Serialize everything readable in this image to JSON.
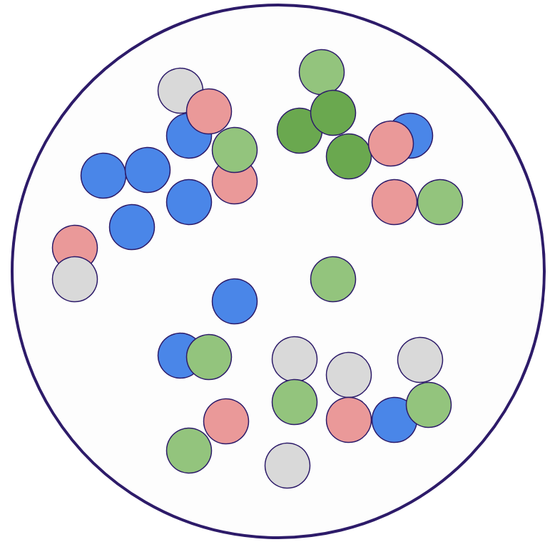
{
  "chart_data": {
    "type": "scatter",
    "marker": "circle",
    "grid": false,
    "tick_labels": false,
    "xlim": [
      0,
      771
    ],
    "ylim": [
      759,
      0
    ],
    "x": [
      253,
      265,
      293,
      145,
      207,
      329,
      329,
      265,
      185,
      105,
      105,
      451,
      420,
      489,
      467,
      575,
      548,
      553,
      617,
      467,
      329,
      253,
      293,
      413,
      413,
      489,
      589,
      489,
      553,
      601,
      317,
      265,
      403
    ],
    "y": [
      127,
      190,
      156,
      246,
      238,
      254,
      210,
      283,
      318,
      347,
      391,
      101,
      183,
      219,
      158,
      190,
      201,
      283,
      283,
      391,
      422,
      498,
      500,
      503,
      563,
      525,
      504,
      588,
      588,
      567,
      590,
      631,
      652
    ],
    "colors": [
      "#d9d9d9",
      "#4a86e8",
      "#ea9999",
      "#4a86e8",
      "#4a86e8",
      "#ea9999",
      "#93c47d",
      "#4a86e8",
      "#4a86e8",
      "#ea9999",
      "#d9d9d9",
      "#93c47d",
      "#6aa84f",
      "#6aa84f",
      "#6aa84f",
      "#4a86e8",
      "#ea9999",
      "#ea9999",
      "#93c47d",
      "#93c47d",
      "#4a86e8",
      "#4a86e8",
      "#93c47d",
      "#d9d9d9",
      "#93c47d",
      "#d9d9d9",
      "#d9d9d9",
      "#ea9999",
      "#4a86e8",
      "#93c47d",
      "#ea9999",
      "#93c47d",
      "#d9d9d9"
    ]
  }
}
